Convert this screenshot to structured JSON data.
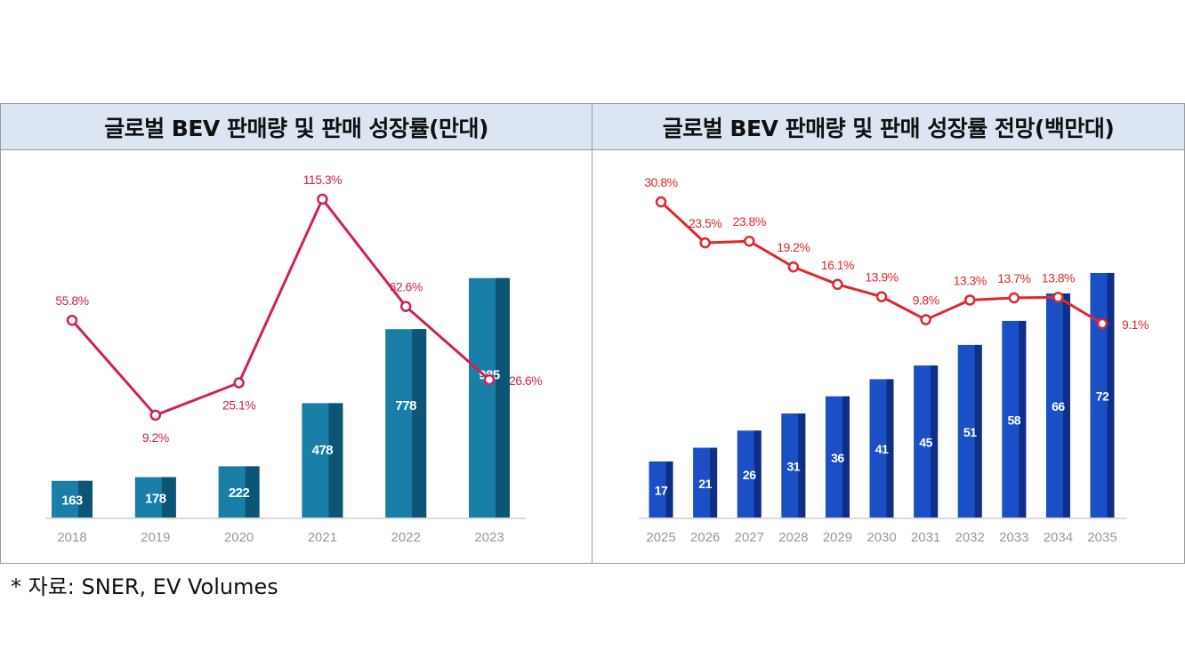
{
  "chart_data": [
    {
      "type": "bar+line",
      "title": "글로벌 BEV 판매량 및 판매 성장률(만대)",
      "categories": [
        "2018",
        "2019",
        "2020",
        "2021",
        "2022",
        "2023"
      ],
      "series": [
        {
          "kind": "bar",
          "values": [
            163,
            178,
            222,
            478,
            778,
            985
          ],
          "color": "#1a7fa8",
          "shade_color": "#0c5575",
          "label_color": "#ffffff"
        },
        {
          "kind": "line",
          "values": [
            55.8,
            9.2,
            25.1,
            115.3,
            62.6,
            26.6
          ],
          "labels": [
            "55.8%",
            "9.2%",
            "25.1%",
            "115.3%",
            "62.6%",
            "26.6%"
          ],
          "label_pos": [
            "above",
            "below",
            "below",
            "above",
            "above",
            "right"
          ],
          "color": "#d0224f"
        }
      ],
      "grid": false,
      "legend": "none"
    },
    {
      "type": "bar+line",
      "title": "글로벌 BEV 판매량 및 판매 성장률 전망(백만대)",
      "categories": [
        "2025",
        "2026",
        "2027",
        "2028",
        "2029",
        "2030",
        "2031",
        "2032",
        "2033",
        "2034",
        "2035"
      ],
      "series": [
        {
          "kind": "bar",
          "values": [
            17,
            21,
            26,
            31,
            36,
            41,
            45,
            51,
            58,
            66,
            72
          ],
          "color": "#1a4fc6",
          "shade_color": "#0d2f86",
          "label_color": "#ffffff"
        },
        {
          "kind": "line",
          "values": [
            30.8,
            23.5,
            23.8,
            19.2,
            16.1,
            13.9,
            9.8,
            13.3,
            13.7,
            13.8,
            9.1
          ],
          "labels": [
            "30.8%",
            "23.5%",
            "23.8%",
            "19.2%",
            "16.1%",
            "13.9%",
            "9.8%",
            "13.3%",
            "13.7%",
            "13.8%",
            "9.1%"
          ],
          "label_pos": [
            "above",
            "above",
            "above",
            "above",
            "above",
            "above",
            "above",
            "above",
            "above",
            "above",
            "right"
          ],
          "color": "#e0262e"
        }
      ],
      "grid": false,
      "legend": "none"
    }
  ],
  "footnote": "* 자료: SNER, EV Volumes"
}
